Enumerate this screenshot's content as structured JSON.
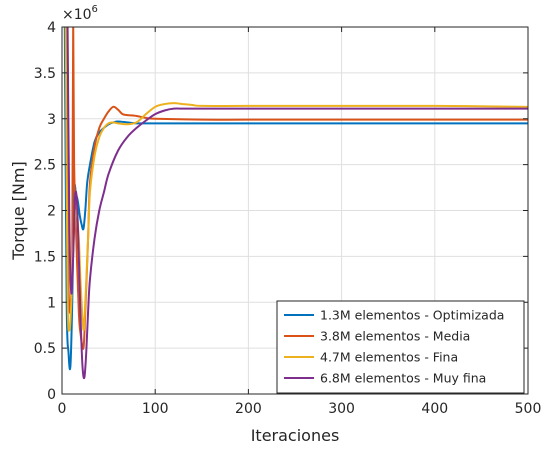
{
  "chart_data": {
    "type": "line",
    "title": "",
    "xlabel": "Iteraciones",
    "ylabel": "Torque [Nm]",
    "xlim": [
      0,
      500
    ],
    "ylim": [
      0,
      4000000
    ],
    "xticks": [
      0,
      100,
      200,
      300,
      400,
      500
    ],
    "yticks": [
      0,
      500000,
      1000000,
      1500000,
      2000000,
      2500000,
      3000000,
      3500000,
      4000000
    ],
    "ytick_labels": [
      "0",
      "0.5",
      "1",
      "1.5",
      "2",
      "2.5",
      "3",
      "3.5",
      "4"
    ],
    "y_exponent_label": "×10",
    "y_exponent_power": "6",
    "grid": true,
    "legend_position": "bottom-right",
    "series": [
      {
        "name": "1.3M elementos - Optimizada",
        "color": "#0072BD",
        "x": [
          3,
          5,
          7,
          9,
          11,
          13,
          15,
          17,
          19,
          21,
          23,
          25,
          27,
          30,
          35,
          40,
          45,
          50,
          55,
          60,
          70,
          80,
          100,
          150,
          200,
          300,
          400,
          500
        ],
        "y": [
          4000000,
          1000000,
          450000,
          300000,
          1000000,
          2200000,
          2180000,
          2100000,
          1950000,
          1850000,
          1800000,
          2000000,
          2300000,
          2500000,
          2750000,
          2850000,
          2900000,
          2940000,
          2960000,
          2970000,
          2960000,
          2950000,
          2950000,
          2950000,
          2950000,
          2950000,
          2950000,
          2950000
        ]
      },
      {
        "name": "3.8M elementos - Media",
        "color": "#D95319",
        "x": [
          5,
          6,
          7,
          8,
          9,
          10,
          11,
          12,
          13,
          15,
          18,
          20,
          23,
          25,
          28,
          30,
          35,
          40,
          45,
          50,
          55,
          60,
          65,
          70,
          80,
          90,
          100,
          150,
          200,
          300,
          400,
          500
        ],
        "y": [
          4000000,
          2000000,
          1200000,
          900000,
          950000,
          1100000,
          1500000,
          4000000,
          2500000,
          1800000,
          900000,
          650000,
          500000,
          900000,
          1700000,
          2300000,
          2700000,
          2900000,
          3000000,
          3080000,
          3130000,
          3100000,
          3050000,
          3040000,
          3030000,
          3010000,
          3000000,
          2990000,
          2990000,
          2990000,
          2990000,
          2990000
        ]
      },
      {
        "name": "4.7M elementos - Fina",
        "color": "#EDB120",
        "x": [
          4,
          6,
          8,
          10,
          12,
          15,
          18,
          20,
          23,
          25,
          28,
          30,
          35,
          40,
          45,
          50,
          55,
          60,
          70,
          80,
          90,
          100,
          110,
          120,
          130,
          140,
          150,
          200,
          300,
          400,
          500
        ],
        "y": [
          4000000,
          1100000,
          700000,
          1000000,
          1600000,
          2000000,
          1700000,
          1200000,
          700000,
          1000000,
          1700000,
          2200000,
          2600000,
          2800000,
          2900000,
          2950000,
          2960000,
          2950000,
          2940000,
          2960000,
          3050000,
          3130000,
          3160000,
          3170000,
          3160000,
          3150000,
          3140000,
          3140000,
          3140000,
          3140000,
          3130000
        ]
      },
      {
        "name": "6.8M elementos - Muy fina",
        "color": "#7E2F8E",
        "x": [
          6,
          8,
          10,
          12,
          14,
          16,
          18,
          20,
          22,
          24,
          26,
          28,
          30,
          35,
          40,
          45,
          50,
          60,
          70,
          80,
          90,
          100,
          110,
          120,
          130,
          140,
          150,
          200,
          300,
          400,
          500
        ],
        "y": [
          4000000,
          1800000,
          1100000,
          1500000,
          2150000,
          2100000,
          1500000,
          800000,
          300000,
          180000,
          450000,
          900000,
          1250000,
          1700000,
          2000000,
          2200000,
          2400000,
          2650000,
          2800000,
          2900000,
          2980000,
          3050000,
          3090000,
          3110000,
          3110000,
          3110000,
          3110000,
          3110000,
          3110000,
          3110000,
          3110000
        ]
      }
    ]
  }
}
